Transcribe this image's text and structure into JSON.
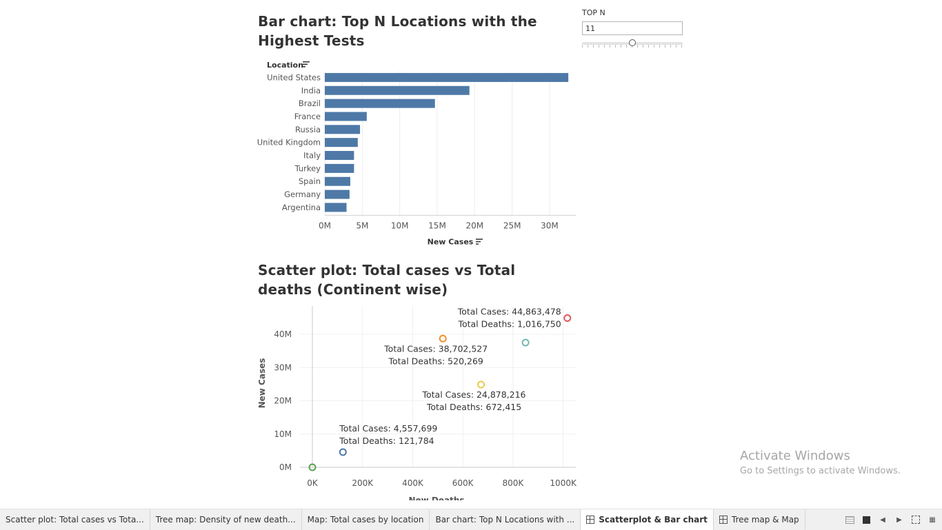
{
  "bar_title": "Bar chart: Top N Locations with the Highest Tests",
  "scatter_title": "Scatter plot: Total cases vs Total deaths (Continent wise)",
  "topn": {
    "label": "TOP N",
    "value": "11",
    "slider_fraction": 0.5
  },
  "chart_data": [
    {
      "type": "bar",
      "orientation": "horizontal",
      "ylabel": "Location",
      "xlabel": "New Cases",
      "categories": [
        "United States",
        "India",
        "Brazil",
        "France",
        "Russia",
        "United Kingdom",
        "Italy",
        "Turkey",
        "Spain",
        "Germany",
        "Argentina"
      ],
      "values": [
        32500000,
        19300000,
        14700000,
        5600000,
        4700000,
        4400000,
        3900000,
        3900000,
        3400000,
        3300000,
        2900000
      ],
      "xticks": [
        "0M",
        "5M",
        "10M",
        "15M",
        "20M",
        "25M",
        "30M"
      ],
      "xtick_values": [
        0,
        5000000,
        10000000,
        15000000,
        20000000,
        25000000,
        30000000
      ],
      "xlim": [
        0,
        33500000
      ],
      "bar_color": "#4e79a7"
    },
    {
      "type": "scatter",
      "xlabel": "New Deaths",
      "ylabel": "New Cases",
      "xlim": [
        0,
        1100000
      ],
      "ylim": [
        0,
        48500000
      ],
      "xticks": [
        "0K",
        "200K",
        "400K",
        "600K",
        "800K",
        "1000K"
      ],
      "xtick_values": [
        0,
        200000,
        400000,
        600000,
        800000,
        1000000
      ],
      "yticks": [
        "0M",
        "10M",
        "20M",
        "30M",
        "40M"
      ],
      "ytick_values": [
        0,
        10000000,
        20000000,
        30000000,
        40000000
      ],
      "points": [
        {
          "x": 1016750,
          "y": 44863478,
          "color": "#e15759",
          "label": [
            "Total Cases: 44,863,478",
            "Total Deaths: 1,016,750"
          ],
          "label_anchor": "end"
        },
        {
          "x": 520269,
          "y": 38702527,
          "color": "#f28e2b",
          "label": [
            "Total Cases: 38,702,527",
            "Total Deaths: 520,269"
          ],
          "label_anchor": "middle"
        },
        {
          "x": 850000,
          "y": 37500000,
          "color": "#76b7b2",
          "label": []
        },
        {
          "x": 672415,
          "y": 24878216,
          "color": "#edc948",
          "label": [
            "Total Cases: 24,878,216",
            "Total Deaths: 672,415"
          ],
          "label_anchor": "middle"
        },
        {
          "x": 121784,
          "y": 4557699,
          "color": "#4e79a7",
          "label": [
            "Total Cases: 4,557,699",
            "Total Deaths: 121,784"
          ],
          "label_anchor": "start"
        },
        {
          "x": 0,
          "y": 0,
          "color": "#59a14f",
          "label": []
        }
      ]
    }
  ],
  "tabs": [
    {
      "label": "Scatter plot: Total cases vs Tota...",
      "active": false,
      "icon": false
    },
    {
      "label": "Tree map: Density of new death...",
      "active": false,
      "icon": false
    },
    {
      "label": "Map: Total cases by location",
      "active": false,
      "icon": false
    },
    {
      "label": "Bar chart: Top N Locations with ...",
      "active": false,
      "icon": false
    },
    {
      "label": "Scatterplot & Bar chart",
      "active": true,
      "icon": true
    },
    {
      "label": "Tree map & Map",
      "active": false,
      "icon": true
    }
  ],
  "watermark": {
    "title": "Activate Windows",
    "subtitle": "Go to Settings to activate Windows."
  }
}
